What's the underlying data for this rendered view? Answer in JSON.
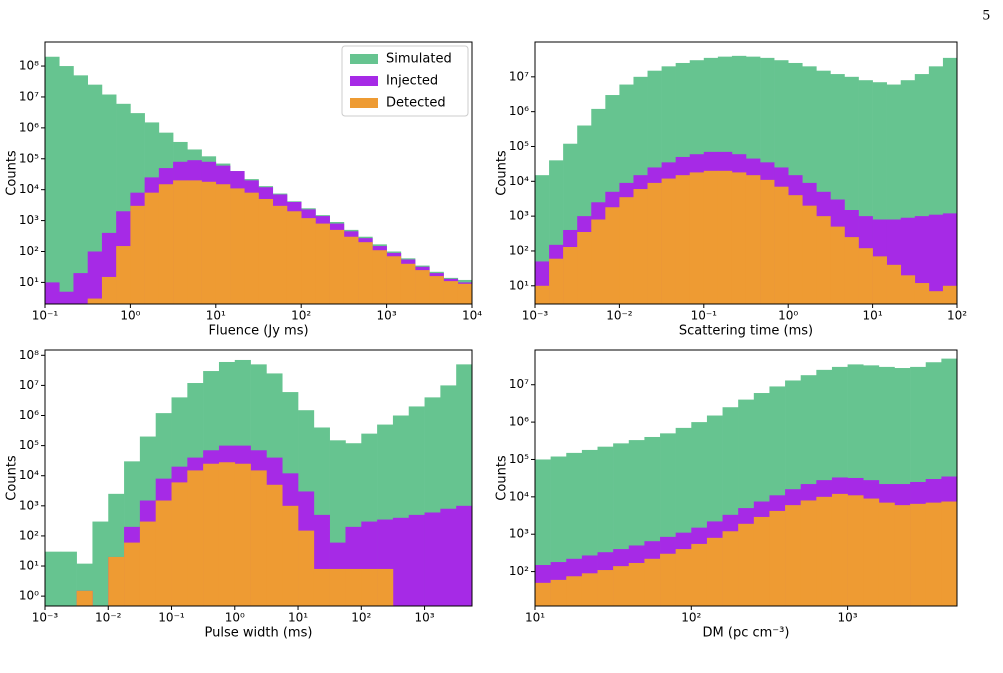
{
  "page_number": "5",
  "chart_data": [
    {
      "type": "histogram",
      "xlabel": "Fluence (Jy ms)",
      "ylabel": "Counts",
      "xscale": "log",
      "yscale": "log",
      "legend": "upper right",
      "xlim": [
        0.1,
        10000
      ],
      "ylim": [
        2,
        600000000
      ],
      "xticks": [
        {
          "value": 0.1,
          "label": "10⁻¹"
        },
        {
          "value": 1,
          "label": "10⁰"
        },
        {
          "value": 10,
          "label": "10¹"
        },
        {
          "value": 100,
          "label": "10²"
        },
        {
          "value": 1000,
          "label": "10³"
        },
        {
          "value": 10000,
          "label": "10⁴"
        }
      ],
      "yticks": [
        {
          "value": 10,
          "label": "10¹"
        },
        {
          "value": 100,
          "label": "10²"
        },
        {
          "value": 1000,
          "label": "10³"
        },
        {
          "value": 10000,
          "label": "10⁴"
        },
        {
          "value": 100000,
          "label": "10⁵"
        },
        {
          "value": 1000000,
          "label": "10⁶"
        },
        {
          "value": 10000000,
          "label": "10⁷"
        },
        {
          "value": 100000000,
          "label": "10⁸"
        }
      ],
      "bins": [
        0.1,
        0.1468,
        0.2154,
        0.3162,
        0.4642,
        0.6813,
        1,
        1.468,
        2.154,
        3.162,
        4.642,
        6.813,
        10,
        14.68,
        21.54,
        31.62,
        46.42,
        68.13,
        100,
        146.8,
        215.4,
        316.2,
        464.2,
        681.3,
        1000,
        1468,
        2154,
        3162,
        4642,
        6813,
        10000
      ],
      "series": [
        {
          "name": "Simulated",
          "color": "#66c490",
          "values": [
            200000000,
            100000000,
            50000000,
            25000000,
            12000000,
            6000000,
            3000000,
            1500000,
            700000,
            350000,
            200000,
            120000,
            70000,
            40000,
            22000,
            13000,
            7500,
            4200,
            2500,
            1500,
            900,
            500,
            300,
            170,
            100,
            60,
            35,
            22,
            14,
            12
          ]
        },
        {
          "name": "Injected",
          "color": "#a62ae6",
          "values": [
            10,
            5,
            20,
            100,
            400,
            2000,
            8000,
            25000,
            50000,
            80000,
            90000,
            80000,
            60000,
            40000,
            20000,
            12000,
            7000,
            4000,
            2300,
            1400,
            800,
            450,
            270,
            150,
            90,
            55,
            32,
            20,
            13,
            10
          ]
        },
        {
          "name": "Detected",
          "color": "#ee9b33",
          "values": [
            0,
            0,
            0,
            3,
            15,
            150,
            3000,
            8000,
            15000,
            20000,
            20000,
            18000,
            15000,
            11000,
            8000,
            5000,
            3000,
            2000,
            1200,
            800,
            500,
            300,
            200,
            110,
            70,
            40,
            25,
            16,
            11,
            9
          ]
        }
      ]
    },
    {
      "type": "histogram",
      "xlabel": "Scattering time (ms)",
      "ylabel": "Counts",
      "xscale": "log",
      "yscale": "log",
      "xlim": [
        0.001,
        100
      ],
      "ylim": [
        3,
        100000000
      ],
      "xticks": [
        {
          "value": 0.001,
          "label": "10⁻³"
        },
        {
          "value": 0.01,
          "label": "10⁻²"
        },
        {
          "value": 0.1,
          "label": "10⁻¹"
        },
        {
          "value": 1,
          "label": "10⁰"
        },
        {
          "value": 10,
          "label": "10¹"
        },
        {
          "value": 100,
          "label": "10²"
        }
      ],
      "yticks": [
        {
          "value": 10,
          "label": "10¹"
        },
        {
          "value": 100,
          "label": "10²"
        },
        {
          "value": 1000,
          "label": "10³"
        },
        {
          "value": 10000,
          "label": "10⁴"
        },
        {
          "value": 100000,
          "label": "10⁵"
        },
        {
          "value": 1000000,
          "label": "10⁶"
        },
        {
          "value": 10000000,
          "label": "10⁷"
        }
      ],
      "bins": [
        0.001,
        0.001468,
        0.002154,
        0.003162,
        0.004642,
        0.006813,
        0.01,
        0.01468,
        0.02154,
        0.03162,
        0.04642,
        0.06813,
        0.1,
        0.1468,
        0.2154,
        0.3162,
        0.4642,
        0.6813,
        1,
        1.468,
        2.154,
        3.162,
        4.642,
        6.813,
        10,
        14.68,
        21.54,
        31.62,
        46.42,
        68.13,
        100
      ],
      "series": [
        {
          "name": "Simulated",
          "color": "#66c490",
          "values": [
            15000,
            40000,
            120000,
            400000,
            1200000,
            3000000,
            6000000,
            10000000,
            15000000,
            20000000,
            25000000,
            30000000,
            35000000,
            38000000,
            40000000,
            38000000,
            35000000,
            30000000,
            25000000,
            20000000,
            15000000,
            12000000,
            10000000,
            8000000,
            7000000,
            6000000,
            8000000,
            12000000,
            20000000,
            35000000
          ]
        },
        {
          "name": "Injected",
          "color": "#a62ae6",
          "values": [
            50,
            150,
            400,
            1000,
            2500,
            5000,
            9000,
            15000,
            25000,
            35000,
            50000,
            60000,
            70000,
            70000,
            60000,
            45000,
            35000,
            25000,
            15000,
            9000,
            5000,
            3000,
            1500,
            1000,
            800,
            800,
            900,
            1000,
            1100,
            1200
          ]
        },
        {
          "name": "Detected",
          "color": "#ee9b33",
          "values": [
            10,
            60,
            130,
            350,
            800,
            1800,
            3500,
            6000,
            9000,
            12000,
            15000,
            18000,
            20000,
            20000,
            18000,
            15000,
            11000,
            7000,
            4000,
            2000,
            1000,
            500,
            250,
            120,
            70,
            40,
            20,
            12,
            7,
            10
          ]
        }
      ]
    },
    {
      "type": "histogram",
      "xlabel": "Pulse width (ms)",
      "ylabel": "Counts",
      "xscale": "log",
      "yscale": "log",
      "xlim": [
        0.001,
        5623
      ],
      "ylim": [
        0.47,
        150000000
      ],
      "xticks": [
        {
          "value": 0.001,
          "label": "10⁻³"
        },
        {
          "value": 0.01,
          "label": "10⁻²"
        },
        {
          "value": 0.1,
          "label": "10⁻¹"
        },
        {
          "value": 1,
          "label": "10⁰"
        },
        {
          "value": 10,
          "label": "10¹"
        },
        {
          "value": 100,
          "label": "10²"
        },
        {
          "value": 1000,
          "label": "10³"
        }
      ],
      "yticks": [
        {
          "value": 1,
          "label": "10⁰"
        },
        {
          "value": 10,
          "label": "10¹"
        },
        {
          "value": 100,
          "label": "10²"
        },
        {
          "value": 1000,
          "label": "10³"
        },
        {
          "value": 10000,
          "label": "10⁴"
        },
        {
          "value": 100000,
          "label": "10⁵"
        },
        {
          "value": 1000000,
          "label": "10⁶"
        },
        {
          "value": 10000000,
          "label": "10⁷"
        },
        {
          "value": 100000000,
          "label": "10⁸"
        }
      ],
      "bins": [
        0.001,
        0.001778,
        0.003162,
        0.005623,
        0.01,
        0.01778,
        0.03162,
        0.05623,
        0.1,
        0.1778,
        0.3162,
        0.5623,
        1,
        1.778,
        3.162,
        5.623,
        10,
        17.78,
        31.62,
        56.23,
        100,
        177.8,
        316.2,
        562.3,
        1000,
        1778,
        3162,
        5623
      ],
      "series": [
        {
          "name": "Simulated",
          "color": "#66c490",
          "values": [
            30,
            30,
            12,
            300,
            2500,
            30000,
            200000,
            1200000,
            4000000,
            12000000,
            30000000,
            60000000,
            70000000,
            50000000,
            25000000,
            6000000,
            1500000,
            400000,
            150000,
            120000,
            250000,
            500000,
            1000000,
            2000000,
            4000000,
            10000000,
            50000000
          ]
        },
        {
          "name": "Injected",
          "color": "#a62ae6",
          "values": [
            0,
            0,
            1.5,
            0,
            20,
            200,
            1500,
            8000,
            20000,
            40000,
            70000,
            100000,
            100000,
            70000,
            40000,
            12000,
            3000,
            500,
            60,
            200,
            300,
            350,
            400,
            500,
            600,
            800,
            1000
          ]
        },
        {
          "name": "Detected",
          "color": "#ee9b33",
          "values": [
            0,
            0,
            1.5,
            0,
            20,
            60,
            300,
            1500,
            6000,
            15000,
            25000,
            28000,
            25000,
            15000,
            5000,
            1000,
            150,
            8,
            8,
            8,
            8,
            8,
            0,
            0,
            0,
            0,
            0
          ]
        }
      ]
    },
    {
      "type": "histogram",
      "xlabel": "DM (pc cm⁻³)",
      "ylabel": "Counts",
      "xscale": "log",
      "yscale": "log",
      "xlim": [
        10,
        5012
      ],
      "ylim": [
        12,
        85000000
      ],
      "xticks": [
        {
          "value": 10,
          "label": "10¹"
        },
        {
          "value": 100,
          "label": "10²"
        },
        {
          "value": 1000,
          "label": "10³"
        }
      ],
      "yticks": [
        {
          "value": 100,
          "label": "10²"
        },
        {
          "value": 1000,
          "label": "10³"
        },
        {
          "value": 10000,
          "label": "10⁴"
        },
        {
          "value": 100000,
          "label": "10⁵"
        },
        {
          "value": 1000000,
          "label": "10⁶"
        },
        {
          "value": 10000000,
          "label": "10⁷"
        }
      ],
      "bins": [
        10,
        12.59,
        15.85,
        19.95,
        25.12,
        31.62,
        39.81,
        50.12,
        63.1,
        79.43,
        100,
        125.9,
        158.5,
        199.5,
        251.2,
        316.2,
        398.1,
        501.2,
        631,
        794.3,
        1000,
        1259,
        1585,
        1995,
        2512,
        3162,
        3981,
        5012
      ],
      "series": [
        {
          "name": "Simulated",
          "color": "#66c490",
          "values": [
            100000,
            120000,
            150000,
            180000,
            220000,
            270000,
            330000,
            400000,
            500000,
            700000,
            1000000,
            1500000,
            2500000,
            4000000,
            6000000,
            9000000,
            13000000,
            18000000,
            25000000,
            30000000,
            35000000,
            33000000,
            30000000,
            28000000,
            30000000,
            40000000,
            50000000
          ]
        },
        {
          "name": "Injected",
          "color": "#a62ae6",
          "values": [
            150,
            180,
            220,
            270,
            330,
            400,
            500,
            650,
            850,
            1100,
            1500,
            2200,
            3300,
            5000,
            7500,
            11000,
            16000,
            22000,
            28000,
            33000,
            32000,
            28000,
            22000,
            22000,
            25000,
            30000,
            35000
          ]
        },
        {
          "name": "Detected",
          "color": "#ee9b33",
          "values": [
            50,
            60,
            75,
            90,
            110,
            140,
            170,
            220,
            300,
            400,
            550,
            800,
            1200,
            1900,
            2900,
            4200,
            6000,
            8000,
            10000,
            12000,
            11000,
            9000,
            7000,
            6000,
            6500,
            7000,
            7500
          ]
        }
      ]
    }
  ]
}
